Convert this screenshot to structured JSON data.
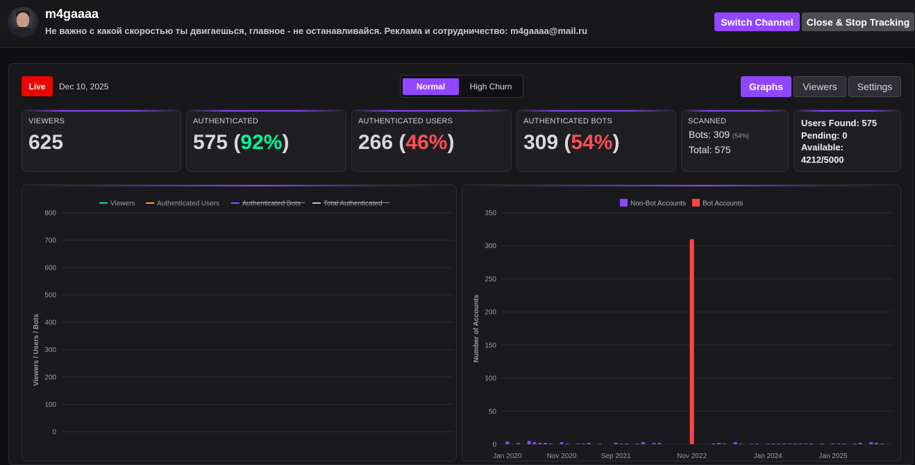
{
  "header": {
    "channel_name": "m4gaaaa",
    "description": "Не важно с какой скоростью ты двигаешься, главное - не останавливайся. Реклама и сотрудничество: m4gaaaa@mail.ru",
    "switch_label": "Switch Channel",
    "close_label": "Close & Stop Tracking",
    "avatar_icon": "user-avatar"
  },
  "status": {
    "live_label": "Live",
    "date": "Dec 10, 2025"
  },
  "modes": {
    "normal": "Normal",
    "high_churn": "High Churn",
    "selected": "Normal"
  },
  "tabs": {
    "graphs": "Graphs",
    "viewers": "Viewers",
    "settings": "Settings",
    "selected": "Graphs"
  },
  "stats": {
    "viewers": {
      "label": "VIEWERS",
      "value": "625"
    },
    "authenticated": {
      "label": "AUTHENTICATED",
      "value": "575",
      "pct": "92%"
    },
    "auth_users": {
      "label": "AUTHENTICATED USERS",
      "value": "266",
      "pct": "46%"
    },
    "auth_bots": {
      "label": "AUTHENTICATED BOTS",
      "value": "309",
      "pct": "54%"
    },
    "scanned": {
      "label": "SCANNED",
      "bots_text": "Bots: 309",
      "bots_pct": "(54%)",
      "total_text": "Total: 575"
    },
    "users_found": {
      "line1": "Users Found: 575",
      "line2": "Pending: 0",
      "line3": "Available:",
      "line4": "4212/5000"
    }
  },
  "colors": {
    "accent": "#9147ff",
    "live": "#eb0400",
    "green": "#00f593",
    "red": "#ff4f55",
    "viewers_series": "#00e676",
    "auth_users_series": "#f5a142",
    "auth_bots_series": "#9147ff",
    "total_auth_series": "#bdbdbd",
    "non_bot_bar": "#9147ff",
    "bot_bar": "#ff4444"
  },
  "chart_data": [
    {
      "type": "line",
      "legend": [
        {
          "name": "Viewers",
          "color": "#00e676",
          "hidden": false
        },
        {
          "name": "Authenticated Users",
          "color": "#f5a142",
          "hidden": false
        },
        {
          "name": "Authenticated Bots",
          "color": "#9147ff",
          "hidden": true
        },
        {
          "name": "Total Authenticated",
          "color": "#bdbdbd",
          "hidden": true
        }
      ],
      "ylabel": "Viewers / Users / Bots",
      "ylim": [
        0,
        800
      ],
      "yticks": [
        "800",
        "700",
        "600",
        "500",
        "400",
        "300",
        "200",
        "100",
        "0"
      ],
      "series": [],
      "grid": true,
      "legend_position": "top"
    },
    {
      "type": "bar",
      "legend": [
        {
          "name": "Non-Bot Accounts",
          "color": "#9147ff"
        },
        {
          "name": "Bot Accounts",
          "color": "#ff4444"
        }
      ],
      "ylabel": "Number of Accounts",
      "ylim": [
        0,
        350
      ],
      "yticks": [
        "350",
        "300",
        "250",
        "200",
        "150",
        "100",
        "50",
        "0"
      ],
      "xticks": [
        "Jan 2020",
        "Nov 2020",
        "Sep 2021",
        "Nov 2022",
        "Jan 2024",
        "Jan 2025"
      ],
      "xlim": [
        "2019-12",
        "2025-12"
      ],
      "series": [
        {
          "name": "Non-Bot Accounts",
          "points": [
            [
              "2020-01",
              4
            ],
            [
              "2020-03",
              2
            ],
            [
              "2020-05",
              5
            ],
            [
              "2020-06",
              3
            ],
            [
              "2020-07",
              2
            ],
            [
              "2020-08",
              2
            ],
            [
              "2020-09",
              1
            ],
            [
              "2020-11",
              3
            ],
            [
              "2020-12",
              1
            ],
            [
              "2021-02",
              1
            ],
            [
              "2021-03",
              1
            ],
            [
              "2021-04",
              2
            ],
            [
              "2021-06",
              1
            ],
            [
              "2021-09",
              2
            ],
            [
              "2021-10",
              1
            ],
            [
              "2021-11",
              1
            ],
            [
              "2022-01",
              1
            ],
            [
              "2022-02",
              3
            ],
            [
              "2022-04",
              2
            ],
            [
              "2022-05",
              2
            ],
            [
              "2022-11",
              2
            ],
            [
              "2023-03",
              1
            ],
            [
              "2023-04",
              2
            ],
            [
              "2023-05",
              1
            ],
            [
              "2023-07",
              3
            ],
            [
              "2023-08",
              1
            ],
            [
              "2023-10",
              1
            ],
            [
              "2023-11",
              1
            ],
            [
              "2024-01",
              1
            ],
            [
              "2024-02",
              1
            ],
            [
              "2024-03",
              1
            ],
            [
              "2024-04",
              1
            ],
            [
              "2024-05",
              1
            ],
            [
              "2024-06",
              1
            ],
            [
              "2024-07",
              1
            ],
            [
              "2024-08",
              1
            ],
            [
              "2024-09",
              1
            ],
            [
              "2024-11",
              1
            ],
            [
              "2025-01",
              1
            ],
            [
              "2025-02",
              1
            ],
            [
              "2025-03",
              1
            ],
            [
              "2025-05",
              1
            ],
            [
              "2025-06",
              2
            ],
            [
              "2025-08",
              3
            ],
            [
              "2025-09",
              2
            ],
            [
              "2025-10",
              1
            ]
          ]
        },
        {
          "name": "Bot Accounts",
          "points": [
            [
              "2022-11",
              310
            ]
          ]
        }
      ],
      "grid": true,
      "legend_position": "top"
    }
  ]
}
